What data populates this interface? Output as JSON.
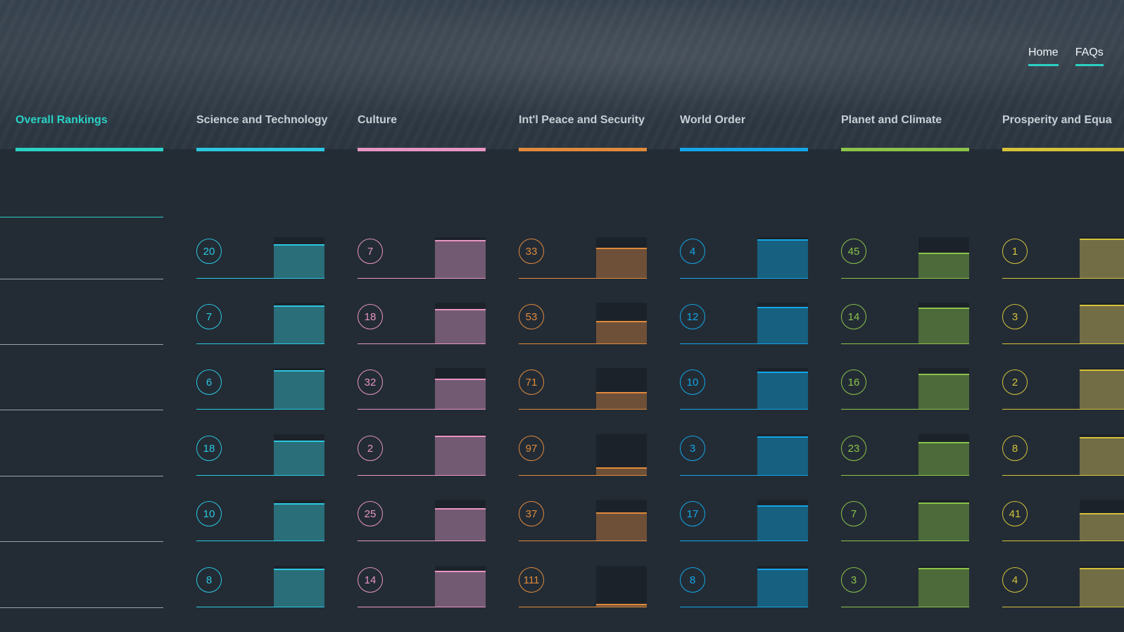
{
  "nav": {
    "home_label": "Home",
    "faqs_label": "FAQs"
  },
  "overall": {
    "label": "Overall Rankings",
    "color": "#2ad1c4"
  },
  "categories": [
    {
      "label": "Science and Technology",
      "color": "#2bc7e0",
      "fill": "#2a6e7a",
      "ranks": [
        20,
        7,
        6,
        18,
        10,
        8
      ],
      "levels": [
        0.85,
        0.97,
        0.98,
        0.88,
        0.94,
        0.96
      ]
    },
    {
      "label": "Culture",
      "color": "#e795c4",
      "fill": "#735a73",
      "ranks": [
        7,
        18,
        32,
        2,
        25,
        14
      ],
      "levels": [
        0.97,
        0.88,
        0.76,
        1.0,
        0.82,
        0.91
      ]
    },
    {
      "label": "Int'l Peace and Security",
      "color": "#e08a3c",
      "fill": "#6e5038",
      "ranks": [
        33,
        53,
        71,
        97,
        37,
        111
      ],
      "levels": [
        0.76,
        0.58,
        0.42,
        0.19,
        0.72,
        0.07
      ]
    },
    {
      "label": "World Order",
      "color": "#14a6e8",
      "fill": "#17607f",
      "ranks": [
        4,
        12,
        10,
        3,
        17,
        8
      ],
      "levels": [
        0.99,
        0.92,
        0.94,
        0.99,
        0.89,
        0.96
      ]
    },
    {
      "label": "Planet and Climate",
      "color": "#8bc34a",
      "fill": "#4d6a3a",
      "ranks": [
        45,
        14,
        16,
        23,
        7,
        3
      ],
      "levels": [
        0.65,
        0.91,
        0.9,
        0.84,
        0.97,
        0.99
      ]
    },
    {
      "label": "Prosperity and Equa",
      "color": "#d4c23a",
      "fill": "#726d45",
      "ranks": [
        1,
        3,
        2,
        8,
        41,
        4
      ],
      "levels": [
        1.0,
        0.99,
        1.0,
        0.96,
        0.69,
        0.99
      ]
    }
  ]
}
